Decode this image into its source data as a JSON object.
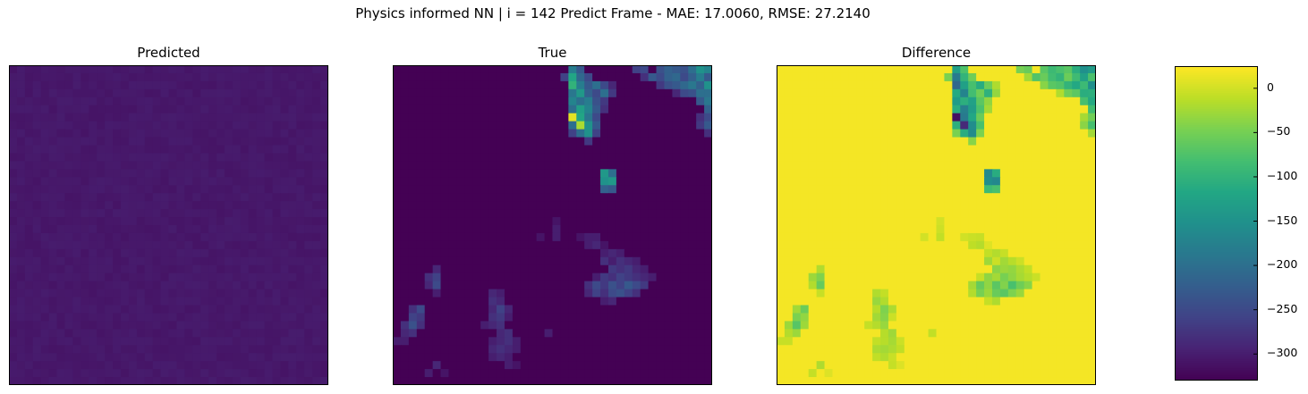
{
  "figure": {
    "suptitle": "Physics informed NN | i = 142 Predict Frame - MAE: 17.0060, RMSE: 27.2140"
  },
  "chart_data": [
    {
      "type": "heatmap",
      "title": "Predicted",
      "grid_size": [
        40,
        40
      ],
      "colormap": "viridis",
      "value_range": [
        -330,
        25
      ],
      "description_values": "near-uniform low values around -310 to -300",
      "base_value": -306,
      "hotspots": []
    },
    {
      "type": "heatmap",
      "title": "True",
      "grid_size": [
        40,
        40
      ],
      "colormap": "viridis",
      "value_range": [
        -330,
        25
      ],
      "base_value": -330,
      "hotspots": [
        {
          "row": 0,
          "col": 22,
          "value": -180
        },
        {
          "row": 0,
          "col": 23,
          "value": -230
        },
        {
          "row": 0,
          "col": 30,
          "value": -260
        },
        {
          "row": 0,
          "col": 31,
          "value": -250
        },
        {
          "row": 0,
          "col": 33,
          "value": -240
        },
        {
          "row": 0,
          "col": 34,
          "value": -220
        },
        {
          "row": 0,
          "col": 35,
          "value": -230
        },
        {
          "row": 0,
          "col": 36,
          "value": -240
        },
        {
          "row": 0,
          "col": 37,
          "value": -200
        },
        {
          "row": 0,
          "col": 38,
          "value": -150
        },
        {
          "row": 0,
          "col": 39,
          "value": -170
        },
        {
          "row": 1,
          "col": 21,
          "value": -260
        },
        {
          "row": 1,
          "col": 22,
          "value": -120
        },
        {
          "row": 1,
          "col": 23,
          "value": -210
        },
        {
          "row": 1,
          "col": 24,
          "value": -250
        },
        {
          "row": 1,
          "col": 31,
          "value": -280
        },
        {
          "row": 1,
          "col": 32,
          "value": -230
        },
        {
          "row": 1,
          "col": 33,
          "value": -250
        },
        {
          "row": 1,
          "col": 34,
          "value": -220
        },
        {
          "row": 1,
          "col": 35,
          "value": -210
        },
        {
          "row": 1,
          "col": 36,
          "value": -250
        },
        {
          "row": 1,
          "col": 37,
          "value": -220
        },
        {
          "row": 1,
          "col": 38,
          "value": -180
        },
        {
          "row": 1,
          "col": 39,
          "value": -230
        },
        {
          "row": 2,
          "col": 22,
          "value": -100
        },
        {
          "row": 2,
          "col": 23,
          "value": -180
        },
        {
          "row": 2,
          "col": 24,
          "value": -230
        },
        {
          "row": 2,
          "col": 25,
          "value": -200
        },
        {
          "row": 2,
          "col": 26,
          "value": -250
        },
        {
          "row": 2,
          "col": 27,
          "value": -290
        },
        {
          "row": 2,
          "col": 33,
          "value": -270
        },
        {
          "row": 2,
          "col": 34,
          "value": -240
        },
        {
          "row": 2,
          "col": 35,
          "value": -230
        },
        {
          "row": 2,
          "col": 36,
          "value": -210
        },
        {
          "row": 2,
          "col": 37,
          "value": -190
        },
        {
          "row": 2,
          "col": 38,
          "value": -220
        },
        {
          "row": 2,
          "col": 39,
          "value": -150
        },
        {
          "row": 3,
          "col": 22,
          "value": -190
        },
        {
          "row": 3,
          "col": 23,
          "value": -140
        },
        {
          "row": 3,
          "col": 24,
          "value": -220
        },
        {
          "row": 3,
          "col": 25,
          "value": -250
        },
        {
          "row": 3,
          "col": 26,
          "value": -200
        },
        {
          "row": 3,
          "col": 27,
          "value": -270
        },
        {
          "row": 3,
          "col": 35,
          "value": -290
        },
        {
          "row": 3,
          "col": 36,
          "value": -250
        },
        {
          "row": 3,
          "col": 37,
          "value": -240
        },
        {
          "row": 3,
          "col": 38,
          "value": -200
        },
        {
          "row": 3,
          "col": 39,
          "value": -200
        },
        {
          "row": 4,
          "col": 22,
          "value": -170
        },
        {
          "row": 4,
          "col": 23,
          "value": -200
        },
        {
          "row": 4,
          "col": 24,
          "value": -180
        },
        {
          "row": 4,
          "col": 25,
          "value": -240
        },
        {
          "row": 4,
          "col": 26,
          "value": -270
        },
        {
          "row": 4,
          "col": 38,
          "value": -230
        },
        {
          "row": 4,
          "col": 39,
          "value": -190
        },
        {
          "row": 5,
          "col": 22,
          "value": -200
        },
        {
          "row": 5,
          "col": 23,
          "value": -130
        },
        {
          "row": 5,
          "col": 24,
          "value": -170
        },
        {
          "row": 5,
          "col": 25,
          "value": -230
        },
        {
          "row": 5,
          "col": 26,
          "value": -280
        },
        {
          "row": 5,
          "col": 39,
          "value": -220
        },
        {
          "row": 6,
          "col": 22,
          "value": 10
        },
        {
          "row": 6,
          "col": 23,
          "value": -120
        },
        {
          "row": 6,
          "col": 24,
          "value": -190
        },
        {
          "row": 6,
          "col": 25,
          "value": -250
        },
        {
          "row": 6,
          "col": 38,
          "value": -280
        },
        {
          "row": 6,
          "col": 39,
          "value": -250
        },
        {
          "row": 7,
          "col": 22,
          "value": -200
        },
        {
          "row": 7,
          "col": 23,
          "value": -20
        },
        {
          "row": 7,
          "col": 24,
          "value": -150
        },
        {
          "row": 7,
          "col": 25,
          "value": -230
        },
        {
          "row": 7,
          "col": 38,
          "value": -270
        },
        {
          "row": 7,
          "col": 39,
          "value": -230
        },
        {
          "row": 8,
          "col": 22,
          "value": -260
        },
        {
          "row": 8,
          "col": 23,
          "value": -200
        },
        {
          "row": 8,
          "col": 24,
          "value": -150
        },
        {
          "row": 8,
          "col": 25,
          "value": -260
        },
        {
          "row": 8,
          "col": 39,
          "value": -280
        },
        {
          "row": 9,
          "col": 24,
          "value": -270
        },
        {
          "row": 13,
          "col": 26,
          "value": -140
        },
        {
          "row": 13,
          "col": 27,
          "value": -200
        },
        {
          "row": 14,
          "col": 26,
          "value": -150
        },
        {
          "row": 14,
          "col": 27,
          "value": -140
        },
        {
          "row": 15,
          "col": 26,
          "value": -220
        },
        {
          "row": 15,
          "col": 27,
          "value": -230
        },
        {
          "row": 19,
          "col": 20,
          "value": -310
        },
        {
          "row": 20,
          "col": 20,
          "value": -300
        },
        {
          "row": 21,
          "col": 18,
          "value": -310
        },
        {
          "row": 21,
          "col": 20,
          "value": -300
        },
        {
          "row": 21,
          "col": 23,
          "value": -310
        },
        {
          "row": 21,
          "col": 24,
          "value": -300
        },
        {
          "row": 21,
          "col": 25,
          "value": -300
        },
        {
          "row": 22,
          "col": 24,
          "value": -300
        },
        {
          "row": 22,
          "col": 25,
          "value": -290
        },
        {
          "row": 22,
          "col": 26,
          "value": -310
        },
        {
          "row": 23,
          "col": 26,
          "value": -300
        },
        {
          "row": 23,
          "col": 27,
          "value": -290
        },
        {
          "row": 23,
          "col": 28,
          "value": -300
        },
        {
          "row": 24,
          "col": 26,
          "value": -280
        },
        {
          "row": 24,
          "col": 27,
          "value": -300
        },
        {
          "row": 24,
          "col": 28,
          "value": -280
        },
        {
          "row": 24,
          "col": 29,
          "value": -290
        },
        {
          "row": 24,
          "col": 30,
          "value": -300
        },
        {
          "row": 25,
          "col": 5,
          "value": -290
        },
        {
          "row": 25,
          "col": 27,
          "value": -270
        },
        {
          "row": 25,
          "col": 28,
          "value": -280
        },
        {
          "row": 25,
          "col": 29,
          "value": -270
        },
        {
          "row": 25,
          "col": 30,
          "value": -290
        },
        {
          "row": 25,
          "col": 31,
          "value": -300
        },
        {
          "row": 26,
          "col": 4,
          "value": -280
        },
        {
          "row": 26,
          "col": 5,
          "value": -260
        },
        {
          "row": 26,
          "col": 25,
          "value": -300
        },
        {
          "row": 26,
          "col": 26,
          "value": -270
        },
        {
          "row": 26,
          "col": 27,
          "value": -280
        },
        {
          "row": 26,
          "col": 28,
          "value": -260
        },
        {
          "row": 26,
          "col": 29,
          "value": -270
        },
        {
          "row": 26,
          "col": 30,
          "value": -280
        },
        {
          "row": 26,
          "col": 31,
          "value": -290
        },
        {
          "row": 26,
          "col": 32,
          "value": -300
        },
        {
          "row": 27,
          "col": 4,
          "value": -290
        },
        {
          "row": 27,
          "col": 5,
          "value": -250
        },
        {
          "row": 27,
          "col": 24,
          "value": -280
        },
        {
          "row": 27,
          "col": 25,
          "value": -250
        },
        {
          "row": 27,
          "col": 26,
          "value": -270
        },
        {
          "row": 27,
          "col": 27,
          "value": -240
        },
        {
          "row": 27,
          "col": 28,
          "value": -260
        },
        {
          "row": 27,
          "col": 29,
          "value": -230
        },
        {
          "row": 27,
          "col": 30,
          "value": -250
        },
        {
          "row": 27,
          "col": 31,
          "value": -270
        },
        {
          "row": 28,
          "col": 5,
          "value": -300
        },
        {
          "row": 28,
          "col": 24,
          "value": -290
        },
        {
          "row": 28,
          "col": 25,
          "value": -260
        },
        {
          "row": 28,
          "col": 26,
          "value": -280
        },
        {
          "row": 28,
          "col": 27,
          "value": -250
        },
        {
          "row": 28,
          "col": 28,
          "value": -240
        },
        {
          "row": 28,
          "col": 29,
          "value": -260
        },
        {
          "row": 28,
          "col": 30,
          "value": -280
        },
        {
          "row": 28,
          "col": 12,
          "value": -290
        },
        {
          "row": 28,
          "col": 13,
          "value": -300
        },
        {
          "row": 29,
          "col": 12,
          "value": -280
        },
        {
          "row": 29,
          "col": 13,
          "value": -290
        },
        {
          "row": 29,
          "col": 26,
          "value": -300
        },
        {
          "row": 29,
          "col": 27,
          "value": -290
        },
        {
          "row": 30,
          "col": 2,
          "value": -280
        },
        {
          "row": 30,
          "col": 3,
          "value": -250
        },
        {
          "row": 30,
          "col": 12,
          "value": -290
        },
        {
          "row": 30,
          "col": 13,
          "value": -260
        },
        {
          "row": 30,
          "col": 14,
          "value": -290
        },
        {
          "row": 31,
          "col": 2,
          "value": -260
        },
        {
          "row": 31,
          "col": 3,
          "value": -270
        },
        {
          "row": 31,
          "col": 12,
          "value": -280
        },
        {
          "row": 31,
          "col": 13,
          "value": -270
        },
        {
          "row": 31,
          "col": 14,
          "value": -300
        },
        {
          "row": 32,
          "col": 1,
          "value": -280
        },
        {
          "row": 32,
          "col": 2,
          "value": -240
        },
        {
          "row": 32,
          "col": 3,
          "value": -280
        },
        {
          "row": 32,
          "col": 11,
          "value": -300
        },
        {
          "row": 32,
          "col": 12,
          "value": -290
        },
        {
          "row": 32,
          "col": 13,
          "value": -280
        },
        {
          "row": 33,
          "col": 1,
          "value": -290
        },
        {
          "row": 33,
          "col": 2,
          "value": -280
        },
        {
          "row": 33,
          "col": 13,
          "value": -290
        },
        {
          "row": 33,
          "col": 14,
          "value": -280
        },
        {
          "row": 33,
          "col": 19,
          "value": -300
        },
        {
          "row": 34,
          "col": 0,
          "value": -300
        },
        {
          "row": 34,
          "col": 1,
          "value": -300
        },
        {
          "row": 34,
          "col": 12,
          "value": -300
        },
        {
          "row": 34,
          "col": 13,
          "value": -290
        },
        {
          "row": 34,
          "col": 14,
          "value": -280
        },
        {
          "row": 34,
          "col": 15,
          "value": -300
        },
        {
          "row": 35,
          "col": 12,
          "value": -290
        },
        {
          "row": 35,
          "col": 13,
          "value": -280
        },
        {
          "row": 35,
          "col": 14,
          "value": -290
        },
        {
          "row": 35,
          "col": 15,
          "value": -300
        },
        {
          "row": 36,
          "col": 12,
          "value": -300
        },
        {
          "row": 36,
          "col": 13,
          "value": -290
        },
        {
          "row": 36,
          "col": 14,
          "value": -300
        },
        {
          "row": 37,
          "col": 5,
          "value": -290
        },
        {
          "row": 37,
          "col": 14,
          "value": -300
        },
        {
          "row": 37,
          "col": 15,
          "value": -310
        },
        {
          "row": 38,
          "col": 4,
          "value": -300
        },
        {
          "row": 38,
          "col": 6,
          "value": -310
        }
      ]
    },
    {
      "type": "heatmap",
      "title": "Difference",
      "grid_size": [
        40,
        40
      ],
      "colormap": "viridis",
      "value_range": [
        -330,
        25
      ],
      "description_values": "Predicted minus True; near 0 (yellow) except where True has hotspots",
      "base_value": 10
    },
    {
      "type": "colorbar",
      "colormap": "viridis",
      "range": [
        -330,
        25
      ],
      "ticks": [
        0,
        -50,
        -100,
        -150,
        -200,
        -250,
        -300
      ],
      "tick_labels": [
        "0",
        "−50",
        "−100",
        "−150",
        "−200",
        "−250",
        "−300"
      ]
    }
  ]
}
